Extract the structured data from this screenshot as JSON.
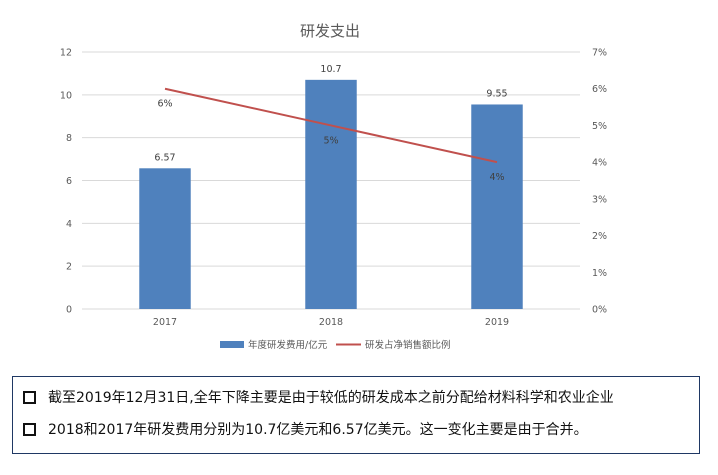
{
  "chart_data": {
    "type": "bar",
    "title": "研发支出",
    "categories": [
      "2017",
      "2018",
      "2019"
    ],
    "series": [
      {
        "name": "年度研发费用/亿元",
        "type": "bar",
        "axis": "left",
        "values": [
          6.57,
          10.7,
          9.55
        ],
        "labels": [
          "6.57",
          "10.7",
          "9.55"
        ],
        "color": "#4f81bd"
      },
      {
        "name": "研发占净销售额比例",
        "type": "line",
        "axis": "right",
        "values": [
          6,
          5,
          4
        ],
        "labels": [
          "6%",
          "5%",
          "4%"
        ],
        "color": "#c0504d"
      }
    ],
    "ylim": [
      0,
      12
    ],
    "y_ticks": [
      "0",
      "2",
      "4",
      "6",
      "8",
      "10",
      "12"
    ],
    "y2lim": [
      0,
      7
    ],
    "y2_ticks": [
      "0%",
      "1%",
      "2%",
      "3%",
      "4%",
      "5%",
      "6%",
      "7%"
    ],
    "grid": true,
    "legend": "bottom"
  },
  "notes": [
    "截至2019年12月31日,全年下降主要是由于较低的研发成本之前分配给材料科学和农业企业",
    "2018和2017年研发费用分别为10.7亿美元和6.57亿美元。这一变化主要是由于合并。"
  ]
}
